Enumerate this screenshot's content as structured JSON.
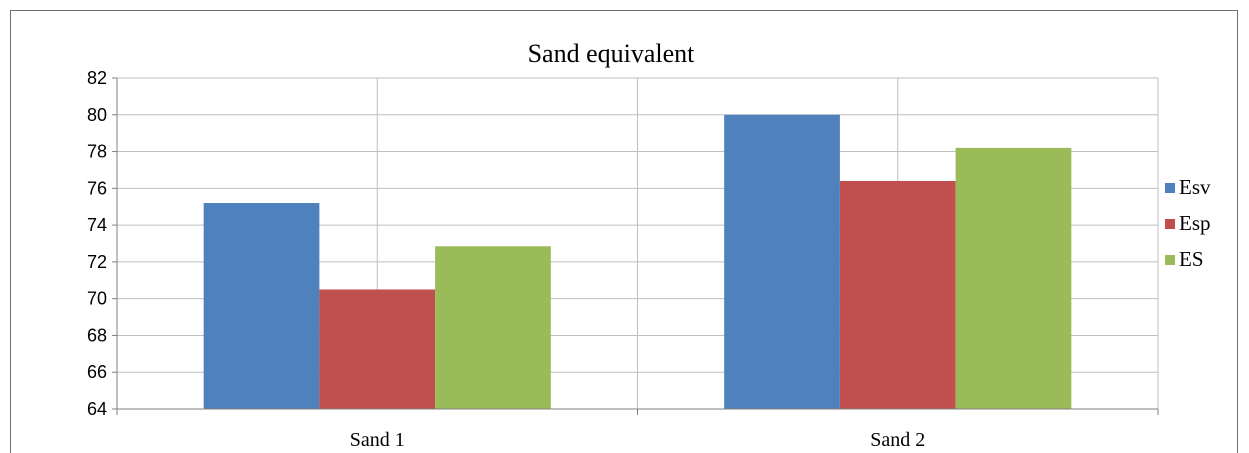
{
  "chart_data": {
    "type": "bar",
    "title": "Sand equivalent",
    "xlabel": "",
    "ylabel": "",
    "categories": [
      "Sand 1",
      "Sand 2"
    ],
    "series": [
      {
        "name": "Esv",
        "values": [
          75.2,
          80.0
        ],
        "color": "#4f81bd"
      },
      {
        "name": "Esp",
        "values": [
          70.5,
          76.4
        ],
        "color": "#c0504d"
      },
      {
        "name": "ES",
        "values": [
          72.85,
          78.2
        ],
        "color": "#9bbb59"
      }
    ],
    "ylim": [
      64,
      82
    ],
    "yticks": [
      "64",
      "66",
      "68",
      "70",
      "72",
      "74",
      "76",
      "78",
      "80",
      "82"
    ],
    "grid": true,
    "legend_position": "right"
  }
}
